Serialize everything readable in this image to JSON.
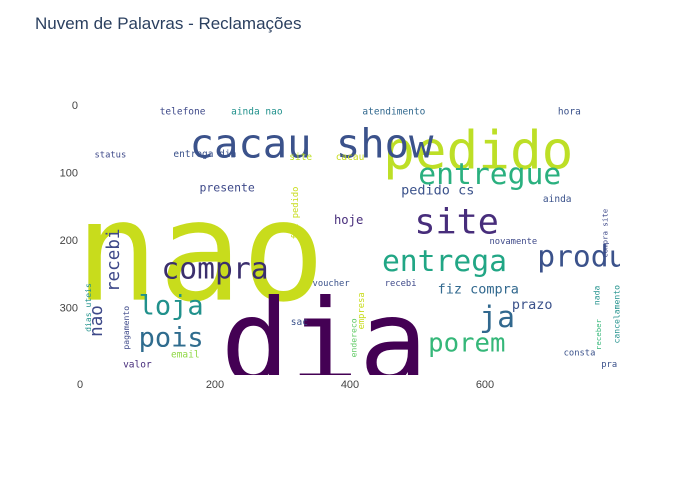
{
  "chart_data": {
    "type": "wordcloud",
    "title": "Nuvem de Palavras - Reclamações",
    "xlabel": "",
    "ylabel": "",
    "xlim": [
      0,
      800
    ],
    "ylim": [
      400,
      0
    ],
    "x_ticks": [
      0,
      200,
      400,
      600
    ],
    "y_ticks": [
      0,
      100,
      200,
      300
    ],
    "grid": false,
    "legend": "none",
    "palette": [
      "#440154",
      "#3b528b",
      "#21918c",
      "#5ec962",
      "#c8dc1c",
      "#fde725"
    ],
    "words": [
      {
        "text": "nao",
        "x": 178,
        "y": 218,
        "size": 205,
        "color": "#c8dc1c"
      },
      {
        "text": "dia",
        "x": 362,
        "y": 352,
        "size": 170,
        "color": "#440154"
      },
      {
        "text": "pedido",
        "x": 590,
        "y": 68,
        "size": 78,
        "color": "#bddf26"
      },
      {
        "text": "cacau show",
        "x": 343,
        "y": 57,
        "size": 60,
        "color": "#3b528b"
      },
      {
        "text": "site",
        "x": 558,
        "y": 173,
        "size": 52,
        "color": "#472d7b"
      },
      {
        "text": "compra",
        "x": 200,
        "y": 243,
        "size": 44,
        "color": "#3b2f6d"
      },
      {
        "text": "entrega",
        "x": 540,
        "y": 232,
        "size": 44,
        "color": "#21a685"
      },
      {
        "text": "entregue",
        "x": 607,
        "y": 103,
        "size": 44,
        "color": "#2ab07f"
      },
      {
        "text": "produto",
        "x": 770,
        "y": 225,
        "size": 44,
        "color": "#3b528b"
      },
      {
        "text": "loja",
        "x": 135,
        "y": 298,
        "size": 40,
        "color": "#21918c"
      },
      {
        "text": "pois",
        "x": 135,
        "y": 345,
        "size": 40,
        "color": "#2f6c8e"
      },
      {
        "text": "porem",
        "x": 573,
        "y": 353,
        "size": 38,
        "color": "#35b779"
      },
      {
        "text": "ja",
        "x": 618,
        "y": 315,
        "size": 44,
        "color": "#31688e"
      },
      {
        "text": "recebi",
        "x": 50,
        "y": 230,
        "size": 26,
        "color": "#3e4989",
        "vertical": true
      },
      {
        "text": "nao",
        "x": 25,
        "y": 320,
        "size": 26,
        "color": "#3e4989",
        "vertical": true
      },
      {
        "text": "pedido cs",
        "x": 530,
        "y": 127,
        "size": 20,
        "color": "#3b528b"
      },
      {
        "text": "fiz compra",
        "x": 590,
        "y": 273,
        "size": 20,
        "color": "#31688e"
      },
      {
        "text": "prazo",
        "x": 670,
        "y": 296,
        "size": 20,
        "color": "#3b528b"
      },
      {
        "text": "hoje",
        "x": 398,
        "y": 170,
        "size": 18,
        "color": "#472d7b"
      },
      {
        "text": "presente",
        "x": 218,
        "y": 122,
        "size": 17,
        "color": "#3e4989"
      },
      {
        "text": "telefone",
        "x": 152,
        "y": 10,
        "size": 14,
        "color": "#3e4989"
      },
      {
        "text": "ainda nao",
        "x": 262,
        "y": 10,
        "size": 14,
        "color": "#21918c"
      },
      {
        "text": "atendimento",
        "x": 465,
        "y": 10,
        "size": 14,
        "color": "#31688e"
      },
      {
        "text": "hora",
        "x": 725,
        "y": 10,
        "size": 14,
        "color": "#3b528b"
      },
      {
        "text": "status",
        "x": 45,
        "y": 75,
        "size": 13,
        "color": "#3e4989"
      },
      {
        "text": "entrega dia",
        "x": 185,
        "y": 73,
        "size": 14,
        "color": "#3b528b"
      },
      {
        "text": "site",
        "x": 327,
        "y": 78,
        "size": 14,
        "color": "#bddf26"
      },
      {
        "text": "cacau",
        "x": 400,
        "y": 78,
        "size": 14,
        "color": "#c8dc1c"
      },
      {
        "text": "ainda",
        "x": 707,
        "y": 140,
        "size": 14,
        "color": "#3b528b"
      },
      {
        "text": "novamente",
        "x": 642,
        "y": 203,
        "size": 13,
        "color": "#3e4989"
      },
      {
        "text": "voucher",
        "x": 372,
        "y": 265,
        "size": 13,
        "color": "#3b528b"
      },
      {
        "text": "recebi",
        "x": 475,
        "y": 265,
        "size": 13,
        "color": "#3e4989"
      },
      {
        "text": "sac",
        "x": 325,
        "y": 322,
        "size": 14,
        "color": "#3b528b"
      },
      {
        "text": "email",
        "x": 156,
        "y": 370,
        "size": 14,
        "color": "#8fd744"
      },
      {
        "text": "valor",
        "x": 85,
        "y": 385,
        "size": 14,
        "color": "#472d7b"
      },
      {
        "text": "consta",
        "x": 740,
        "y": 368,
        "size": 13,
        "color": "#3b528b"
      },
      {
        "text": "pra",
        "x": 784,
        "y": 385,
        "size": 13,
        "color": "#3b528b"
      },
      {
        "text": "pagamento",
        "x": 68,
        "y": 330,
        "size": 12,
        "color": "#3e4989",
        "vertical": true
      },
      {
        "text": "dias uteis",
        "x": 12,
        "y": 300,
        "size": 12,
        "color": "#21918c",
        "vertical": true
      },
      {
        "text": "fiz pedido",
        "x": 320,
        "y": 160,
        "size": 13,
        "color": "#c8dc1c",
        "vertical": true
      },
      {
        "text": "empresa",
        "x": 418,
        "y": 305,
        "size": 13,
        "color": "#c8dc1c",
        "vertical": true
      },
      {
        "text": "endereco",
        "x": 405,
        "y": 345,
        "size": 12,
        "color": "#5ec962",
        "vertical": true
      },
      {
        "text": "cancelamento",
        "x": 795,
        "y": 310,
        "size": 12,
        "color": "#21918c",
        "vertical": true
      },
      {
        "text": "nada",
        "x": 765,
        "y": 282,
        "size": 12,
        "color": "#21918c",
        "vertical": true
      },
      {
        "text": "compra site",
        "x": 778,
        "y": 190,
        "size": 11,
        "color": "#3e4989",
        "vertical": true
      },
      {
        "text": "receber",
        "x": 768,
        "y": 340,
        "size": 11,
        "color": "#35b779",
        "vertical": true
      }
    ]
  }
}
